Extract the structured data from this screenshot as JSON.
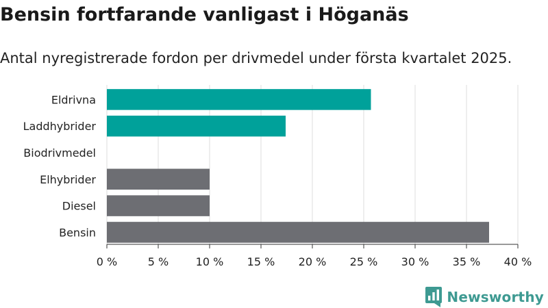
{
  "header": {
    "title": "Bensin fortfarande vanligast i Höganäs",
    "subtitle": "Antal nyregistrerade fordon per drivmedel under första kvartalet 2025."
  },
  "brand": {
    "name": "Newsworthy",
    "logo_icon": "bar-chart-speech-bubble-icon",
    "color": "#3e9a92"
  },
  "chart_data": {
    "type": "bar",
    "orientation": "horizontal",
    "categories": [
      "Eldrivna",
      "Laddhybrider",
      "Biodrivmedel",
      "Elhybrider",
      "Diesel",
      "Bensin"
    ],
    "values": [
      25.7,
      17.4,
      0,
      10.0,
      10.0,
      37.2
    ],
    "colors": [
      "#00a19a",
      "#00a19a",
      "#00a19a",
      "#6d6e73",
      "#6d6e73",
      "#6d6e73"
    ],
    "xlim": [
      0,
      40
    ],
    "xticks": [
      0,
      5,
      10,
      15,
      20,
      25,
      30,
      35,
      40
    ],
    "xtick_labels": [
      "0 %",
      "5 %",
      "10 %",
      "15 %",
      "20 %",
      "25 %",
      "30 %",
      "35 %",
      "40 %"
    ],
    "grid": "vertical",
    "xlabel": "",
    "ylabel": ""
  }
}
